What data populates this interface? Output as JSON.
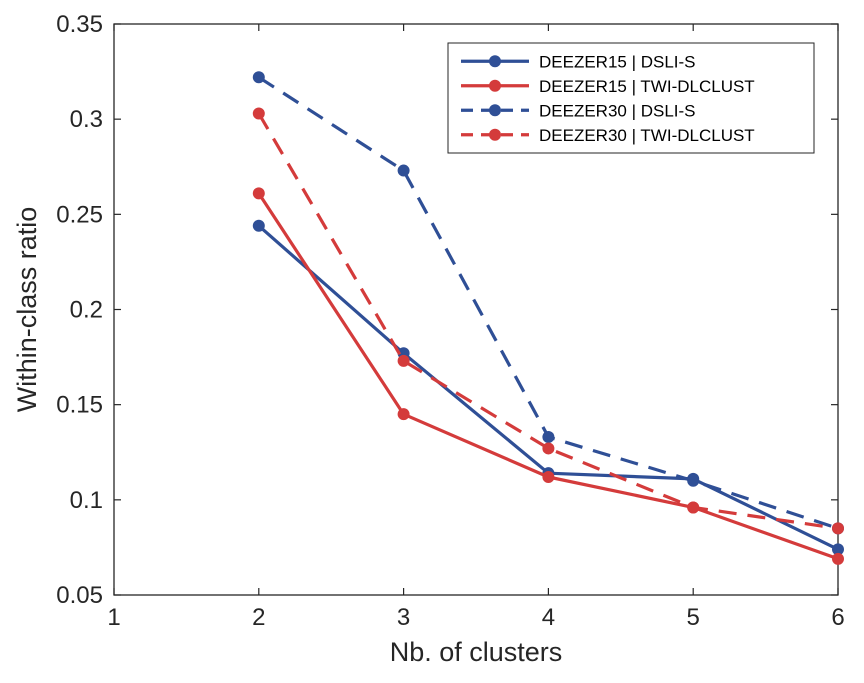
{
  "chart_data": {
    "type": "line",
    "title": "",
    "xlabel": "Nb. of clusters",
    "ylabel": "Within-class ratio",
    "xlim": [
      1,
      6
    ],
    "ylim": [
      0.05,
      0.35
    ],
    "grid": false,
    "legend_position": "top-right",
    "x_ticks": [
      "1",
      "2",
      "3",
      "4",
      "5",
      "6"
    ],
    "y_ticks": [
      "0.05",
      "0.1",
      "0.15",
      "0.2",
      "0.25",
      "0.3",
      "0.35"
    ],
    "x": [
      2,
      3,
      4,
      5,
      6
    ],
    "series": [
      {
        "name": "DEEZER15 | DSLI-S",
        "color": "#2f4f96",
        "dash": "solid",
        "values": [
          0.244,
          0.177,
          0.114,
          0.111,
          0.074
        ]
      },
      {
        "name": "DEEZER15 | TWI-DLCLUST",
        "color": "#d43b3b",
        "dash": "solid",
        "values": [
          0.261,
          0.145,
          0.112,
          0.096,
          0.069
        ]
      },
      {
        "name": "DEEZER30 | DSLI-S",
        "color": "#2f4f96",
        "dash": "dashed",
        "values": [
          0.322,
          0.273,
          0.133,
          0.11,
          0.085
        ]
      },
      {
        "name": "DEEZER30 | TWI-DLCLUST",
        "color": "#d43b3b",
        "dash": "dashed",
        "values": [
          0.303,
          0.173,
          0.127,
          0.096,
          0.085
        ]
      }
    ]
  }
}
